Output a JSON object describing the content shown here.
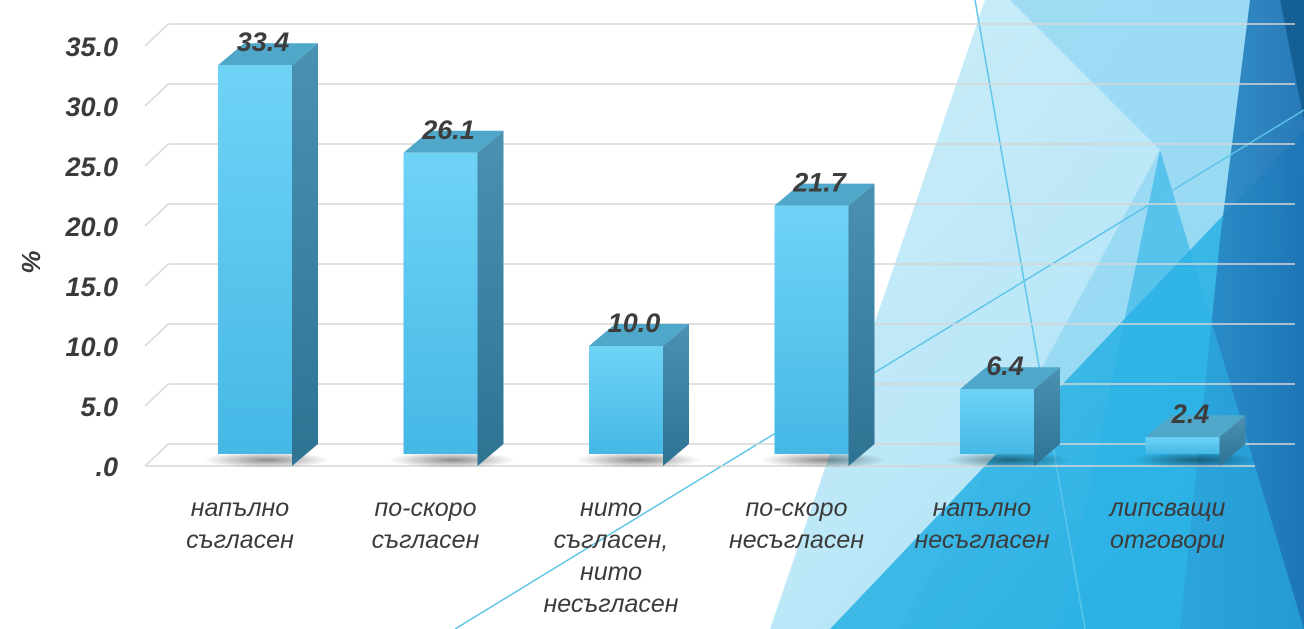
{
  "chart_data": {
    "type": "bar",
    "ylabel": "%",
    "ylim": [
      0,
      35
    ],
    "yticks": [
      ".0",
      "5.0",
      "10.0",
      "15.0",
      "20.0",
      "25.0",
      "30.0",
      "35.0"
    ],
    "categories": [
      [
        "напълно",
        "съгласен"
      ],
      [
        "по-скоро",
        "съгласен"
      ],
      [
        "нито",
        "съгласен,",
        "нито",
        "несъгласен"
      ],
      [
        "по-скоро",
        "несъгласен"
      ],
      [
        "напълно",
        "несъгласен"
      ],
      [
        "липсващи",
        "отговори"
      ]
    ],
    "values": [
      33.4,
      26.1,
      10.0,
      21.7,
      6.4,
      2.4
    ],
    "value_labels": [
      "33.4",
      "26.1",
      "10.0",
      "21.7",
      "6.4",
      "2.4"
    ],
    "grid": true,
    "colors": {
      "bar_front": "#5fc8ee",
      "bar_side": "#3e86a6",
      "bar_top": "#4fa7c9",
      "grid": "#d6d6d6"
    }
  }
}
